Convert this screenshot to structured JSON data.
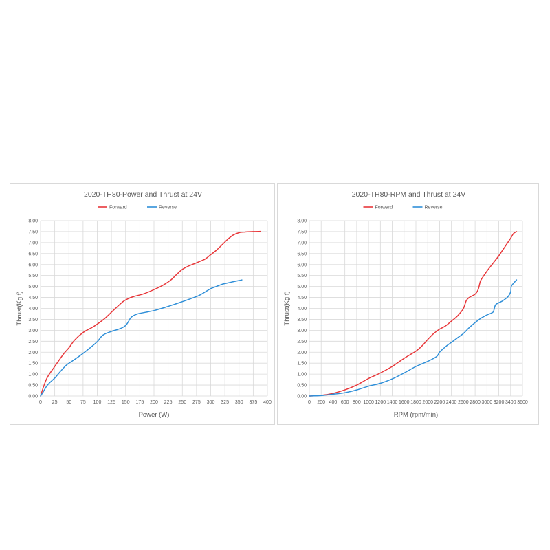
{
  "chart_data": [
    {
      "type": "line",
      "title": "2020-TH80-Power and Thrust at 24V",
      "xlabel": "Power (W)",
      "ylabel": "Thrust(Kg f)",
      "xlim": [
        0,
        400
      ],
      "ylim": [
        0,
        8
      ],
      "xticks": [
        "0",
        "25",
        "50",
        "75",
        "100",
        "125",
        "150",
        "175",
        "200",
        "225",
        "250",
        "275",
        "300",
        "325",
        "350",
        "375",
        "400"
      ],
      "yticks": [
        "0.00",
        "0.50",
        "1.00",
        "1.50",
        "2.00",
        "2.50",
        "3.00",
        "3.50",
        "4.00",
        "4.50",
        "5.00",
        "5.50",
        "6.00",
        "6.50",
        "7.00",
        "7.50",
        "8.00"
      ],
      "grid": true,
      "legend_position": "top",
      "series": [
        {
          "name": "Forward",
          "color": "#e8373a",
          "x": [
            0,
            5,
            12,
            25,
            40,
            50,
            60,
            75,
            90,
            100,
            115,
            130,
            145,
            155,
            165,
            180,
            195,
            210,
            220,
            230,
            240,
            250,
            260,
            275,
            290,
            300,
            310,
            320,
            330,
            340,
            350,
            360,
            375,
            388
          ],
          "y": [
            0,
            0.4,
            0.85,
            1.35,
            1.9,
            2.2,
            2.55,
            2.9,
            3.12,
            3.28,
            3.58,
            3.95,
            4.3,
            4.45,
            4.55,
            4.65,
            4.8,
            4.98,
            5.12,
            5.3,
            5.55,
            5.78,
            5.92,
            6.08,
            6.25,
            6.45,
            6.65,
            6.9,
            7.15,
            7.35,
            7.45,
            7.48,
            7.5,
            7.51
          ]
        },
        {
          "name": "Reverse",
          "color": "#2f8fd8",
          "x": [
            0,
            5,
            10,
            15,
            25,
            35,
            45,
            55,
            70,
            85,
            100,
            110,
            125,
            140,
            150,
            155,
            160,
            170,
            185,
            200,
            220,
            240,
            260,
            280,
            300,
            310,
            320,
            330,
            340,
            350,
            355
          ],
          "y": [
            0,
            0.2,
            0.42,
            0.58,
            0.82,
            1.12,
            1.4,
            1.58,
            1.85,
            2.15,
            2.48,
            2.78,
            2.95,
            3.07,
            3.22,
            3.4,
            3.6,
            3.74,
            3.82,
            3.9,
            4.05,
            4.22,
            4.4,
            4.6,
            4.9,
            5.0,
            5.1,
            5.16,
            5.22,
            5.27,
            5.3
          ]
        }
      ]
    },
    {
      "type": "line",
      "title": "2020-TH80-RPM and Thrust at 24V",
      "xlabel": "RPM (rpm/min)",
      "ylabel": "Thrust(Kg f)",
      "xlim": [
        0,
        3600
      ],
      "ylim": [
        0,
        8
      ],
      "xticks": [
        "0",
        "200",
        "400",
        "600",
        "800",
        "1000",
        "1200",
        "1400",
        "1600",
        "1800",
        "2000",
        "2200",
        "2400",
        "2600",
        "2800",
        "3000",
        "3200",
        "3400",
        "3600"
      ],
      "yticks": [
        "0.00",
        "0.50",
        "1.00",
        "1.50",
        "2.00",
        "2.50",
        "3.00",
        "3.50",
        "4.00",
        "4.50",
        "5.00",
        "5.50",
        "6.00",
        "6.50",
        "7.00",
        "7.50",
        "8.00"
      ],
      "grid": true,
      "legend_position": "top",
      "series": [
        {
          "name": "Forward",
          "color": "#e8373a",
          "x": [
            0,
            200,
            400,
            600,
            800,
            1000,
            1200,
            1400,
            1600,
            1800,
            1900,
            2000,
            2100,
            2200,
            2300,
            2400,
            2500,
            2600,
            2650,
            2700,
            2800,
            2850,
            2880,
            2900,
            3000,
            3100,
            3200,
            3300,
            3400,
            3450,
            3500
          ],
          "y": [
            0,
            0.03,
            0.12,
            0.28,
            0.5,
            0.8,
            1.05,
            1.35,
            1.72,
            2.05,
            2.28,
            2.58,
            2.85,
            3.05,
            3.2,
            3.42,
            3.65,
            3.98,
            4.35,
            4.5,
            4.65,
            4.85,
            5.15,
            5.3,
            5.7,
            6.05,
            6.4,
            6.8,
            7.2,
            7.42,
            7.5
          ]
        },
        {
          "name": "Reverse",
          "color": "#2f8fd8",
          "x": [
            0,
            200,
            400,
            600,
            800,
            1000,
            1200,
            1400,
            1600,
            1800,
            2000,
            2150,
            2200,
            2300,
            2400,
            2500,
            2600,
            2700,
            2800,
            2900,
            3000,
            3100,
            3120,
            3150,
            3250,
            3350,
            3400,
            3410,
            3450,
            3500
          ],
          "y": [
            0,
            0.02,
            0.08,
            0.15,
            0.28,
            0.45,
            0.58,
            0.78,
            1.05,
            1.35,
            1.58,
            1.8,
            2.0,
            2.25,
            2.45,
            2.65,
            2.85,
            3.12,
            3.35,
            3.55,
            3.7,
            3.82,
            3.95,
            4.18,
            4.32,
            4.52,
            4.75,
            5.0,
            5.15,
            5.3
          ]
        }
      ]
    }
  ]
}
